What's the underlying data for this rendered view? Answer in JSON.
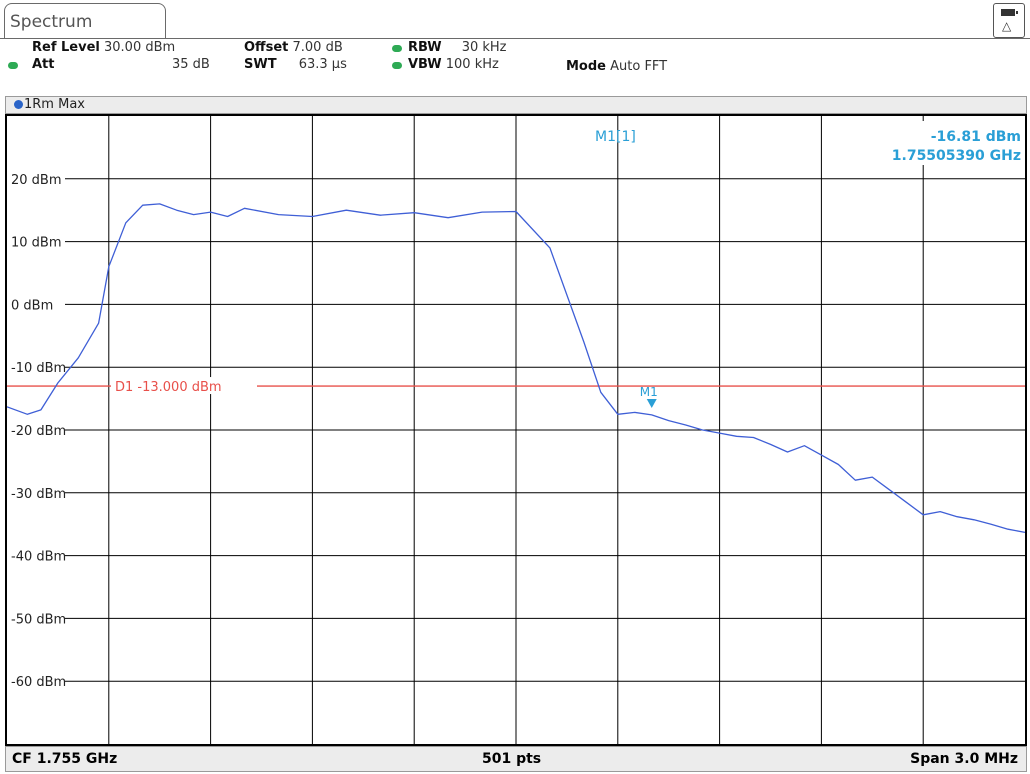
{
  "header": {
    "tab_label": "Spectrum",
    "ref_level_label": "Ref Level",
    "ref_level_value": "30.00 dBm",
    "offset_label": "Offset",
    "offset_value": "7.00 dB",
    "rbw_label": "RBW",
    "rbw_value": "30 kHz",
    "att_label": "Att",
    "att_value": "35 dB",
    "swt_label": "SWT",
    "swt_value": "63.3 µs",
    "vbw_label": "VBW",
    "vbw_value": "100 kHz",
    "mode_label": "Mode",
    "mode_value": "Auto FFT"
  },
  "trace": {
    "label": "1Rm Max"
  },
  "marker": {
    "name": "M1[1]",
    "level": "-16.81 dBm",
    "frequency": "1.75505390 GHz",
    "tag": "M1"
  },
  "display_line": {
    "label": "D1 -13.000 dBm",
    "value_dbm": -13
  },
  "footer": {
    "center_freq": "CF 1.755 GHz",
    "points": "501 pts",
    "span": "Span 3.0 MHz"
  },
  "colors": {
    "trace": "#3f5fd6",
    "marker": "#2a9fd6",
    "display_line": "#e8504a",
    "grid": "#000000",
    "status_dot": "#2eaa55"
  },
  "chart_data": {
    "type": "line",
    "title": "",
    "xlabel": "",
    "ylabel": "",
    "ylim": [
      -70,
      30
    ],
    "y_ticks": [
      "20 dBm",
      "10 dBm",
      "0 dBm",
      "-10 dBm",
      "-20 dBm",
      "-30 dBm",
      "-40 dBm",
      "-50 dBm",
      "-60 dBm"
    ],
    "y_tick_values": [
      20,
      10,
      0,
      -10,
      -20,
      -30,
      -40,
      -50,
      -60
    ],
    "x_start_mhz": 1753.5,
    "x_stop_mhz": 1756.5,
    "x_divisions": 10,
    "series": [
      {
        "x": [
          1753.5,
          1753.56,
          1753.6,
          1753.65,
          1753.71,
          1753.77,
          1753.8,
          1753.85,
          1753.9,
          1753.95,
          1754.0,
          1754.05,
          1754.1,
          1754.15,
          1754.2,
          1754.3,
          1754.4,
          1754.5,
          1754.6,
          1754.7,
          1754.8,
          1754.9,
          1755.0,
          1755.1,
          1755.2,
          1755.25,
          1755.3,
          1755.35,
          1755.4,
          1755.45,
          1755.5,
          1755.55,
          1755.6,
          1755.65,
          1755.7,
          1755.75,
          1755.8,
          1755.85,
          1755.9,
          1755.95,
          1756.0,
          1756.05,
          1756.1,
          1756.15,
          1756.2,
          1756.25,
          1756.3,
          1756.35,
          1756.4,
          1756.45,
          1756.5
        ],
        "y": [
          -16.3,
          -17.5,
          -16.8,
          -12.5,
          -8.5,
          -3.0,
          6.0,
          13.0,
          15.8,
          16.0,
          15.0,
          14.3,
          14.7,
          14.0,
          15.3,
          14.3,
          14.0,
          15.0,
          14.2,
          14.6,
          13.8,
          14.7,
          14.8,
          9.0,
          -6.0,
          -14.0,
          -17.5,
          -17.2,
          -17.6,
          -18.5,
          -19.2,
          -20.0,
          -20.5,
          -21.0,
          -21.2,
          -22.3,
          -23.5,
          -22.5,
          -24.0,
          -25.5,
          -28.0,
          -27.5,
          -29.5,
          -31.5,
          -33.5,
          -33.0,
          -33.8,
          -34.3,
          -35.0,
          -35.8,
          -36.3
        ]
      }
    ]
  }
}
